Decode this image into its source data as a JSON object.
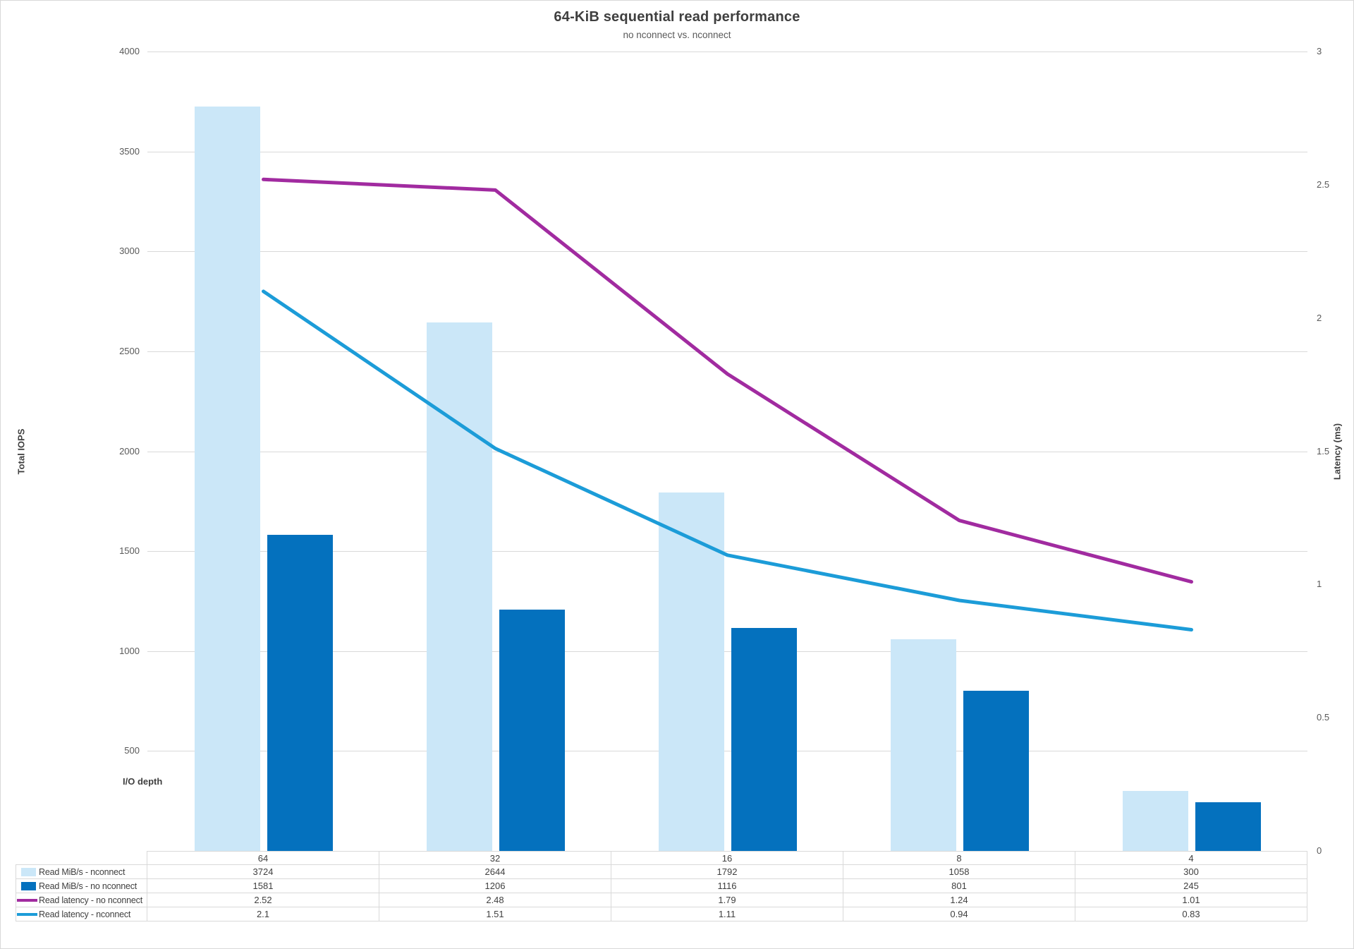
{
  "colors": {
    "bar_nconnect": "#CBE7F8",
    "bar_no_nconnect": "#0471BE",
    "line_latency_no_nconnect": "#A12BA0",
    "line_latency_nconnect": "#1C9CD8",
    "gridline": "#D9D9D9",
    "table_border": "#D9D9D9",
    "text_primary": "#404040",
    "text_secondary": "#595959"
  },
  "chart_data": {
    "type": "bar+line combo with data table legend",
    "title": "64-KiB sequential read performance",
    "subtitle": "no nconnect vs. nconnect",
    "categories": [
      "64",
      "32",
      "16",
      "8",
      "4"
    ],
    "x_axis_title": "I/O depth",
    "left_axis": {
      "title": "Total IOPS",
      "min": 0,
      "max": 4000,
      "step": 500,
      "tick_labels": [
        "4000",
        "3500",
        "3000",
        "2500",
        "2000",
        "1500",
        "1000",
        "500"
      ]
    },
    "right_axis": {
      "title": "Latency (ms)",
      "min": 0,
      "max": 3,
      "step": 0.5,
      "tick_labels": [
        "3",
        "2.5",
        "2",
        "1.5",
        "1",
        "0.5",
        "0"
      ]
    },
    "grid": "horizontal",
    "legend_position": "data-table-left-column",
    "series": [
      {
        "name": "Read MiB/s - nconnect",
        "type": "bar",
        "axis": "left",
        "color": "#CBE7F8",
        "values": [
          3724,
          2644,
          1792,
          1058,
          300
        ]
      },
      {
        "name": "Read MiB/s - no nconnect",
        "type": "bar",
        "axis": "left",
        "color": "#0471BE",
        "values": [
          1581,
          1206,
          1116,
          801,
          245
        ]
      },
      {
        "name": "Read latency - no nconnect",
        "type": "line",
        "axis": "right",
        "color": "#A12BA0",
        "values": [
          2.52,
          2.48,
          1.79,
          1.24,
          1.01
        ]
      },
      {
        "name": "Read latency - nconnect",
        "type": "line",
        "axis": "right",
        "color": "#1C9CD8",
        "values": [
          2.1,
          1.51,
          1.11,
          0.94,
          0.83
        ]
      }
    ]
  }
}
